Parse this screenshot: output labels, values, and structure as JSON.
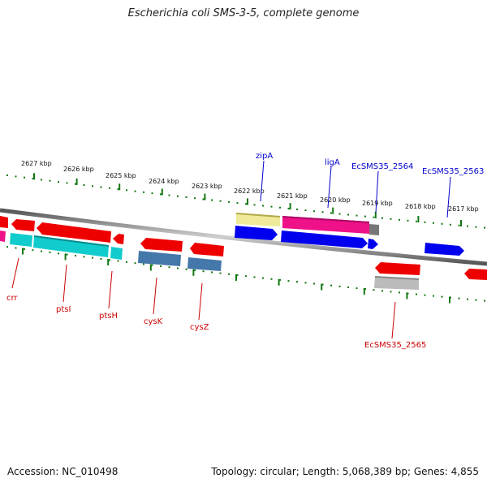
{
  "title": "Escherichia coli SMS-3-5, complete genome",
  "footer": {
    "accession": "Accession: NC_010498",
    "topology": "Topology: circular; Length: 5,068,389 bp; Genes: 4,855"
  },
  "scale_labels": [
    "2627 kbp",
    "2626 kbp",
    "2625 kbp",
    "2624 kbp",
    "2623 kbp",
    "2622 kbp",
    "2621 kbp",
    "2620 kbp",
    "2619 kbp",
    "2618 kbp",
    "2617 kbp"
  ],
  "genes_top": [
    "zipA",
    "ligA",
    "EcSMS35_2564",
    "EcSMS35_2563"
  ],
  "genes_bottom": [
    "crr",
    "ptsI",
    "ptsH",
    "cysK",
    "cysZ",
    "EcSMS35_2565"
  ],
  "colors": {
    "label_forward": "#0000cc",
    "label_reverse": "#cc0000",
    "tick": "#117711",
    "backbone": "#888888",
    "red": "#ee0000",
    "blue": "#0000ee",
    "magenta": "#ee1188",
    "cyan": "#11cccc",
    "steel": "#4477aa",
    "yellow": "#eeee99",
    "gray": "#bbbbbb"
  }
}
